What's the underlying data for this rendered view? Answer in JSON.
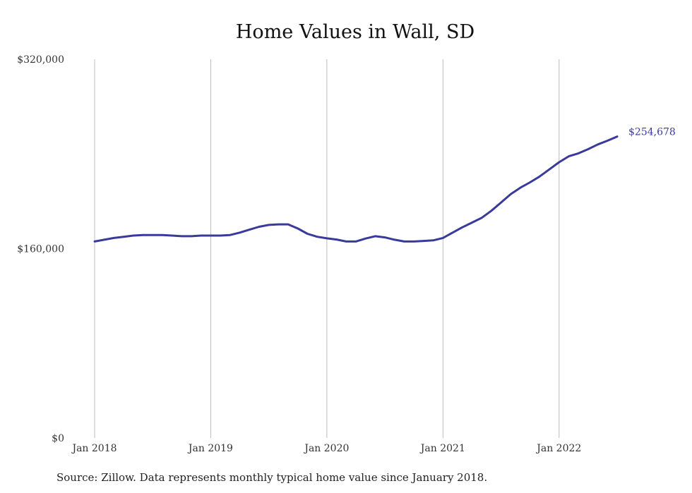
{
  "source_note": "Source: Zillow. Data represents monthly typical home value since January 2018.",
  "chart_data": {
    "type": "line",
    "title": "Home Values in Wall, SD",
    "xlabel": "",
    "ylabel": "",
    "x_ticks": [
      "Jan 2018",
      "Jan 2019",
      "Jan 2020",
      "Jan 2021",
      "Jan 2022"
    ],
    "y_ticks": [
      "$0",
      "$160,000",
      "$320,000"
    ],
    "y_tick_values": [
      0,
      160000,
      320000
    ],
    "ylim": [
      0,
      320000
    ],
    "xlim": [
      "2018-01",
      "2022-07"
    ],
    "grid": "vertical",
    "line_color": "#3a3a9a",
    "end_label": "$254,678",
    "series": [
      {
        "x": [
          "2018-01",
          "2018-02",
          "2018-03",
          "2018-04",
          "2018-05",
          "2018-06",
          "2018-07",
          "2018-08",
          "2018-09",
          "2018-10",
          "2018-11",
          "2018-12",
          "2019-01",
          "2019-02",
          "2019-03",
          "2019-04",
          "2019-05",
          "2019-06",
          "2019-07",
          "2019-08",
          "2019-09",
          "2019-10",
          "2019-11",
          "2019-12",
          "2020-01",
          "2020-02",
          "2020-03",
          "2020-04",
          "2020-05",
          "2020-06",
          "2020-07",
          "2020-08",
          "2020-09",
          "2020-10",
          "2020-11",
          "2020-12",
          "2021-01",
          "2021-02",
          "2021-03",
          "2021-04",
          "2021-05",
          "2021-06",
          "2021-07",
          "2021-08",
          "2021-09",
          "2021-10",
          "2021-11",
          "2021-12",
          "2022-01",
          "2022-02",
          "2022-03",
          "2022-04",
          "2022-05",
          "2022-06",
          "2022-07"
        ],
        "values": [
          166000,
          167500,
          169000,
          170000,
          171000,
          171500,
          171500,
          171500,
          171000,
          170500,
          170500,
          171000,
          171000,
          171000,
          171500,
          173500,
          176000,
          178500,
          180000,
          180500,
          180500,
          177000,
          172500,
          170000,
          168700,
          167700,
          166000,
          166000,
          168500,
          170500,
          169500,
          167500,
          166000,
          166000,
          166500,
          167000,
          169000,
          173500,
          178000,
          182000,
          186000,
          192000,
          199000,
          206000,
          211500,
          216000,
          221000,
          227000,
          233000,
          238000,
          240500,
          244000,
          248000,
          251200,
          254678
        ]
      }
    ]
  }
}
